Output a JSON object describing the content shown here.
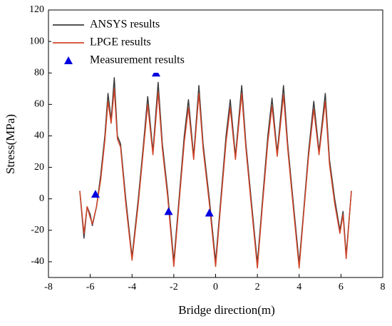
{
  "chart_data": {
    "type": "line",
    "xlabel": "Bridge direction(m)",
    "ylabel": "Stress(MPa)",
    "xlim": [
      -8,
      8
    ],
    "ylim": [
      -50,
      120
    ],
    "xticks": [
      -8,
      -6,
      -4,
      -2,
      0,
      2,
      4,
      6,
      8
    ],
    "yticks": [
      -40,
      -20,
      0,
      20,
      40,
      60,
      80,
      100,
      120
    ],
    "legend": "upper left",
    "x": [
      -6.5,
      -6.3,
      -6.15,
      -6.0,
      -5.9,
      -5.7,
      -5.5,
      -5.3,
      -5.15,
      -5.0,
      -4.85,
      -4.7,
      -4.55,
      -4.3,
      -4.0,
      -3.7,
      -3.45,
      -3.25,
      -3.0,
      -2.75,
      -2.55,
      -2.3,
      -2.0,
      -1.75,
      -1.5,
      -1.3,
      -1.05,
      -0.8,
      -0.6,
      -0.3,
      0.0,
      0.25,
      0.5,
      0.7,
      0.95,
      1.25,
      1.45,
      1.7,
      2.0,
      2.25,
      2.5,
      2.7,
      2.95,
      3.25,
      3.45,
      3.7,
      4.0,
      4.2,
      4.45,
      4.7,
      4.95,
      5.25,
      5.45,
      5.7,
      5.95,
      6.1,
      6.25,
      6.5
    ],
    "series": [
      {
        "name": "ANSYS results",
        "color": "#3c3c3c",
        "values": [
          5,
          -25,
          -5,
          -10,
          -17,
          -5,
          15,
          40,
          67,
          50,
          77,
          40,
          35,
          0,
          -37,
          0,
          35,
          65,
          30,
          74,
          35,
          5,
          -40,
          0,
          40,
          63,
          27,
          72,
          35,
          0,
          -40,
          0,
          40,
          63,
          27,
          72,
          35,
          0,
          -41,
          0,
          40,
          64,
          29,
          72,
          35,
          0,
          -41,
          -10,
          30,
          62,
          30,
          67,
          25,
          0,
          -20,
          -8,
          -36,
          5
        ]
      },
      {
        "name": "LPGE results",
        "color": "#d0452a",
        "values": [
          5,
          -22,
          -5,
          -12,
          -16,
          -5,
          12,
          37,
          62,
          48,
          70,
          38,
          33,
          -3,
          -39,
          -3,
          32,
          60,
          28,
          68,
          32,
          2,
          -43,
          -3,
          36,
          58,
          25,
          67,
          32,
          -3,
          -43,
          -3,
          36,
          58,
          25,
          67,
          32,
          -3,
          -44,
          -3,
          36,
          59,
          27,
          66,
          32,
          -3,
          -44,
          -12,
          27,
          57,
          28,
          62,
          22,
          -3,
          -22,
          -10,
          -38,
          5
        ]
      },
      {
        "name": "Measurement results",
        "color": "#0000e0",
        "type": "scatter",
        "x": [
          -5.75,
          -2.85,
          -2.25,
          -0.3
        ],
        "values": [
          3,
          80,
          -8,
          -9
        ]
      }
    ]
  }
}
